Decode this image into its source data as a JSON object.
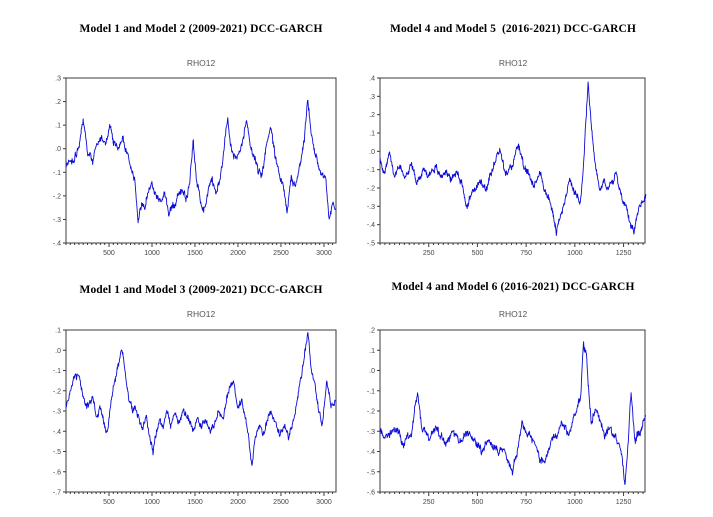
{
  "figure": {
    "background": "#ffffff",
    "frame_color": "#3b3b3b",
    "tick_label_color": "#454545",
    "title_color": "#000000",
    "subtitle_color": "#555555"
  },
  "chart_data": [
    {
      "id": "model-1-and-2",
      "type": "line",
      "title": "Model 1 and Model 2 (2009-2021) DCC-GARCH",
      "subtitle": "RHO12",
      "xlabel": "",
      "ylabel": "",
      "grid": false,
      "legend": "none",
      "line_color": "#0c0cd6",
      "xlim": [
        0,
        3140
      ],
      "ylim": [
        -0.4,
        0.3
      ],
      "xticks": [
        500,
        1000,
        1500,
        2000,
        2500,
        3000
      ],
      "x_minor_step": 50,
      "ytick_values": [
        0.3,
        0.2,
        0.1,
        0.0,
        -0.1,
        -0.2,
        -0.3,
        -0.4
      ],
      "ytick_labels": [
        ".3",
        ".2",
        ".1",
        ".0",
        "-.1",
        "-.2",
        "-.3",
        "-.4"
      ],
      "noise_amp": 0.02,
      "seed": 11,
      "keypoints": [
        [
          1,
          -0.08
        ],
        [
          60,
          -0.05
        ],
        [
          120,
          -0.02
        ],
        [
          200,
          0.1
        ],
        [
          250,
          0.0
        ],
        [
          310,
          -0.05
        ],
        [
          360,
          0.02
        ],
        [
          420,
          0.05
        ],
        [
          470,
          0.02
        ],
        [
          510,
          0.09
        ],
        [
          560,
          0.02
        ],
        [
          610,
          0.0
        ],
        [
          660,
          0.04
        ],
        [
          700,
          -0.02
        ],
        [
          750,
          -0.08
        ],
        [
          800,
          -0.12
        ],
        [
          840,
          -0.3
        ],
        [
          880,
          -0.22
        ],
        [
          920,
          -0.26
        ],
        [
          960,
          -0.18
        ],
        [
          1000,
          -0.15
        ],
        [
          1050,
          -0.2
        ],
        [
          1100,
          -0.24
        ],
        [
          1150,
          -0.19
        ],
        [
          1200,
          -0.27
        ],
        [
          1250,
          -0.23
        ],
        [
          1300,
          -0.21
        ],
        [
          1350,
          -0.17
        ],
        [
          1400,
          -0.2
        ],
        [
          1440,
          -0.13
        ],
        [
          1480,
          0.04
        ],
        [
          1520,
          -0.14
        ],
        [
          1560,
          -0.22
        ],
        [
          1600,
          -0.25
        ],
        [
          1650,
          -0.18
        ],
        [
          1700,
          -0.13
        ],
        [
          1750,
          -0.18
        ],
        [
          1800,
          -0.1
        ],
        [
          1850,
          0.05
        ],
        [
          1880,
          0.13
        ],
        [
          1910,
          0.02
        ],
        [
          1950,
          -0.03
        ],
        [
          2000,
          -0.05
        ],
        [
          2050,
          0.02
        ],
        [
          2100,
          0.1
        ],
        [
          2140,
          0.02
        ],
        [
          2180,
          -0.02
        ],
        [
          2230,
          -0.08
        ],
        [
          2280,
          -0.12
        ],
        [
          2330,
          0.02
        ],
        [
          2380,
          0.08
        ],
        [
          2430,
          -0.03
        ],
        [
          2480,
          -0.1
        ],
        [
          2530,
          -0.17
        ],
        [
          2570,
          -0.28
        ],
        [
          2620,
          -0.13
        ],
        [
          2670,
          -0.17
        ],
        [
          2720,
          -0.08
        ],
        [
          2770,
          0.02
        ],
        [
          2810,
          0.21
        ],
        [
          2850,
          0.06
        ],
        [
          2890,
          -0.01
        ],
        [
          2930,
          -0.06
        ],
        [
          2970,
          -0.09
        ],
        [
          3020,
          -0.12
        ],
        [
          3060,
          -0.31
        ],
        [
          3100,
          -0.24
        ],
        [
          3135,
          -0.27
        ]
      ]
    },
    {
      "id": "model-4-and-5",
      "type": "line",
      "title": "Model 4 and Model 5  (2016-2021) DCC-GARCH",
      "subtitle": "RHO12",
      "xlabel": "",
      "ylabel": "",
      "grid": false,
      "legend": "none",
      "line_color": "#0c0cd6",
      "xlim": [
        0,
        1360
      ],
      "ylim": [
        -0.5,
        0.4
      ],
      "xticks": [
        250,
        500,
        750,
        1000,
        1250
      ],
      "x_minor_step": 25,
      "ytick_values": [
        0.4,
        0.3,
        0.2,
        0.1,
        0.0,
        -0.1,
        -0.2,
        -0.3,
        -0.4,
        -0.5
      ],
      "ytick_labels": [
        ".4",
        ".3",
        ".2",
        ".1",
        ".0",
        "-.1",
        "-.2",
        "-.3",
        "-.4",
        "-.5"
      ],
      "noise_amp": 0.024,
      "seed": 23,
      "keypoints": [
        [
          1,
          -0.05
        ],
        [
          25,
          -0.12
        ],
        [
          50,
          -0.02
        ],
        [
          75,
          -0.14
        ],
        [
          100,
          -0.08
        ],
        [
          130,
          -0.14
        ],
        [
          160,
          -0.07
        ],
        [
          190,
          -0.16
        ],
        [
          220,
          -0.1
        ],
        [
          250,
          -0.13
        ],
        [
          280,
          -0.08
        ],
        [
          310,
          -0.14
        ],
        [
          340,
          -0.1
        ],
        [
          370,
          -0.16
        ],
        [
          395,
          -0.1
        ],
        [
          420,
          -0.17
        ],
        [
          447,
          -0.3
        ],
        [
          475,
          -0.22
        ],
        [
          513,
          -0.17
        ],
        [
          545,
          -0.22
        ],
        [
          575,
          -0.12
        ],
        [
          615,
          0.03
        ],
        [
          645,
          -0.14
        ],
        [
          680,
          -0.08
        ],
        [
          710,
          0.06
        ],
        [
          735,
          -0.1
        ],
        [
          760,
          -0.12
        ],
        [
          790,
          -0.18
        ],
        [
          820,
          -0.12
        ],
        [
          850,
          -0.22
        ],
        [
          880,
          -0.3
        ],
        [
          905,
          -0.44
        ],
        [
          930,
          -0.35
        ],
        [
          955,
          -0.22
        ],
        [
          975,
          -0.15
        ],
        [
          1000,
          -0.22
        ],
        [
          1025,
          -0.3
        ],
        [
          1045,
          -0.05
        ],
        [
          1068,
          0.37
        ],
        [
          1085,
          0.15
        ],
        [
          1103,
          -0.05
        ],
        [
          1128,
          -0.22
        ],
        [
          1150,
          -0.15
        ],
        [
          1175,
          -0.2
        ],
        [
          1212,
          -0.13
        ],
        [
          1240,
          -0.25
        ],
        [
          1263,
          -0.3
        ],
        [
          1285,
          -0.38
        ],
        [
          1305,
          -0.44
        ],
        [
          1325,
          -0.3
        ],
        [
          1347,
          -0.27
        ],
        [
          1364,
          -0.24
        ]
      ]
    },
    {
      "id": "model-1-and-3",
      "type": "line",
      "title": "Model 1 and Model 3 (2009-2021) DCC-GARCH",
      "subtitle": "RHO12",
      "xlabel": "",
      "ylabel": "",
      "grid": false,
      "legend": "none",
      "line_color": "#0c0cd6",
      "xlim": [
        0,
        3140
      ],
      "ylim": [
        -0.7,
        0.1
      ],
      "xticks": [
        500,
        1000,
        1500,
        2000,
        2500,
        3000
      ],
      "x_minor_step": 50,
      "ytick_values": [
        0.1,
        0.0,
        -0.1,
        -0.2,
        -0.3,
        -0.4,
        -0.5,
        -0.6,
        -0.7
      ],
      "ytick_labels": [
        ".1",
        ".0",
        "-.1",
        "-.2",
        "-.3",
        "-.4",
        "-.5",
        "-.6",
        "-.7"
      ],
      "noise_amp": 0.022,
      "seed": 37,
      "keypoints": [
        [
          1,
          -0.28
        ],
        [
          60,
          -0.2
        ],
        [
          110,
          -0.1
        ],
        [
          160,
          -0.15
        ],
        [
          210,
          -0.25
        ],
        [
          260,
          -0.28
        ],
        [
          310,
          -0.22
        ],
        [
          360,
          -0.33
        ],
        [
          400,
          -0.28
        ],
        [
          440,
          -0.35
        ],
        [
          480,
          -0.42
        ],
        [
          520,
          -0.28
        ],
        [
          560,
          -0.18
        ],
        [
          610,
          -0.1
        ],
        [
          650,
          0.02
        ],
        [
          690,
          -0.12
        ],
        [
          730,
          -0.25
        ],
        [
          770,
          -0.3
        ],
        [
          810,
          -0.28
        ],
        [
          850,
          -0.33
        ],
        [
          890,
          -0.38
        ],
        [
          930,
          -0.32
        ],
        [
          970,
          -0.42
        ],
        [
          1010,
          -0.51
        ],
        [
          1050,
          -0.42
        ],
        [
          1090,
          -0.35
        ],
        [
          1130,
          -0.38
        ],
        [
          1170,
          -0.32
        ],
        [
          1220,
          -0.38
        ],
        [
          1270,
          -0.33
        ],
        [
          1320,
          -0.36
        ],
        [
          1370,
          -0.3
        ],
        [
          1420,
          -0.35
        ],
        [
          1470,
          -0.4
        ],
        [
          1520,
          -0.35
        ],
        [
          1570,
          -0.38
        ],
        [
          1620,
          -0.35
        ],
        [
          1670,
          -0.4
        ],
        [
          1720,
          -0.37
        ],
        [
          1770,
          -0.3
        ],
        [
          1820,
          -0.35
        ],
        [
          1870,
          -0.25
        ],
        [
          1920,
          -0.18
        ],
        [
          1950,
          -0.14
        ],
        [
          1990,
          -0.3
        ],
        [
          2040,
          -0.25
        ],
        [
          2090,
          -0.35
        ],
        [
          2130,
          -0.45
        ],
        [
          2160,
          -0.58
        ],
        [
          2200,
          -0.42
        ],
        [
          2250,
          -0.38
        ],
        [
          2300,
          -0.42
        ],
        [
          2350,
          -0.35
        ],
        [
          2390,
          -0.3
        ],
        [
          2440,
          -0.38
        ],
        [
          2490,
          -0.42
        ],
        [
          2540,
          -0.38
        ],
        [
          2590,
          -0.43
        ],
        [
          2640,
          -0.35
        ],
        [
          2690,
          -0.25
        ],
        [
          2740,
          -0.12
        ],
        [
          2815,
          0.07
        ],
        [
          2850,
          -0.08
        ],
        [
          2900,
          -0.2
        ],
        [
          2940,
          -0.3
        ],
        [
          2980,
          -0.38
        ],
        [
          3035,
          -0.15
        ],
        [
          3080,
          -0.27
        ],
        [
          3135,
          -0.25
        ]
      ]
    },
    {
      "id": "model-4-and-6",
      "type": "line",
      "title": "Model 4 and Model 6 (2016-2021) DCC-GARCH",
      "subtitle": "RHO12",
      "xlabel": "",
      "ylabel": "",
      "grid": false,
      "legend": "none",
      "line_color": "#0c0cd6",
      "xlim": [
        0,
        1360
      ],
      "ylim": [
        -0.6,
        0.2
      ],
      "xticks": [
        250,
        500,
        750,
        1000,
        1250
      ],
      "x_minor_step": 25,
      "ytick_values": [
        0.2,
        0.1,
        0.0,
        -0.1,
        -0.2,
        -0.3,
        -0.4,
        -0.5,
        -0.6
      ],
      "ytick_labels": [
        ".2",
        ".1",
        ".0",
        "-.1",
        "-.2",
        "-.3",
        "-.4",
        "-.5",
        "-.6"
      ],
      "noise_amp": 0.024,
      "seed": 51,
      "keypoints": [
        [
          1,
          -0.28
        ],
        [
          40,
          -0.33
        ],
        [
          80,
          -0.29
        ],
        [
          120,
          -0.36
        ],
        [
          160,
          -0.31
        ],
        [
          195,
          -0.1
        ],
        [
          215,
          -0.28
        ],
        [
          250,
          -0.32
        ],
        [
          290,
          -0.28
        ],
        [
          330,
          -0.35
        ],
        [
          370,
          -0.3
        ],
        [
          410,
          -0.36
        ],
        [
          450,
          -0.31
        ],
        [
          490,
          -0.36
        ],
        [
          520,
          -0.4
        ],
        [
          560,
          -0.33
        ],
        [
          600,
          -0.37
        ],
        [
          640,
          -0.42
        ],
        [
          680,
          -0.5
        ],
        [
          710,
          -0.35
        ],
        [
          730,
          -0.26
        ],
        [
          760,
          -0.33
        ],
        [
          800,
          -0.38
        ],
        [
          845,
          -0.47
        ],
        [
          880,
          -0.36
        ],
        [
          910,
          -0.32
        ],
        [
          937,
          -0.25
        ],
        [
          970,
          -0.31
        ],
        [
          996,
          -0.22
        ],
        [
          1013,
          -0.18
        ],
        [
          1030,
          -0.12
        ],
        [
          1044,
          0.13
        ],
        [
          1058,
          0.07
        ],
        [
          1075,
          -0.15
        ],
        [
          1085,
          -0.25
        ],
        [
          1108,
          -0.18
        ],
        [
          1130,
          -0.28
        ],
        [
          1155,
          -0.32
        ],
        [
          1180,
          -0.28
        ],
        [
          1210,
          -0.32
        ],
        [
          1244,
          -0.42
        ],
        [
          1256,
          -0.56
        ],
        [
          1272,
          -0.38
        ],
        [
          1289,
          -0.11
        ],
        [
          1310,
          -0.35
        ],
        [
          1330,
          -0.32
        ],
        [
          1344,
          -0.3
        ],
        [
          1362,
          -0.22
        ]
      ]
    }
  ]
}
